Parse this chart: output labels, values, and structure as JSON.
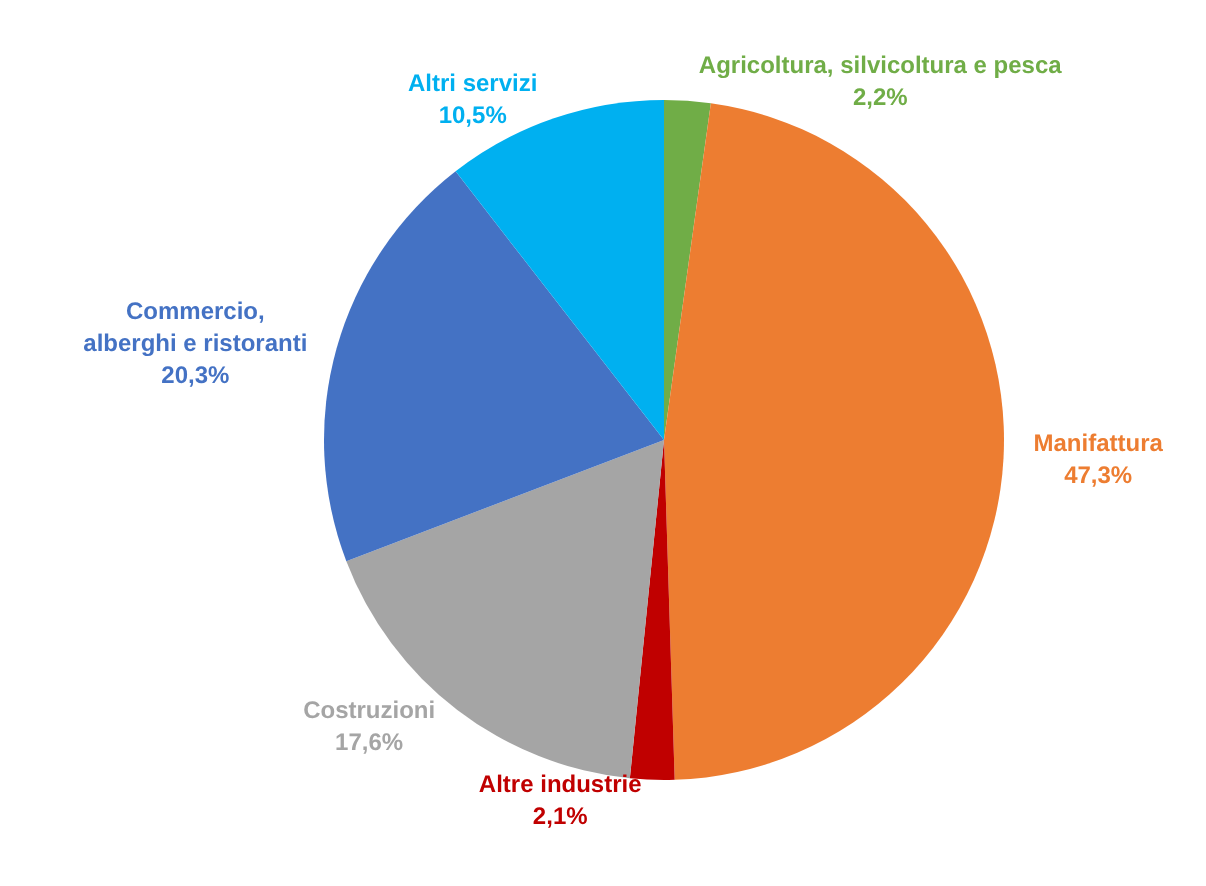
{
  "chart_data": {
    "type": "pie",
    "categories": [
      "Agricoltura, silvicoltura e pesca",
      "Manifattura",
      "Altre industrie",
      "Costruzioni",
      "Commercio,\nalberghi e ristoranti",
      "Altri servizi"
    ],
    "values": [
      2.2,
      47.3,
      2.1,
      17.6,
      20.3,
      10.5
    ],
    "value_labels": [
      "2,2%",
      "47,3%",
      "2,1%",
      "17,6%",
      "20,3%",
      "10,5%"
    ],
    "colors": [
      "#70ad47",
      "#ed7d31",
      "#c00000",
      "#a5a5a5",
      "#4472c4",
      "#00b0f0"
    ]
  }
}
